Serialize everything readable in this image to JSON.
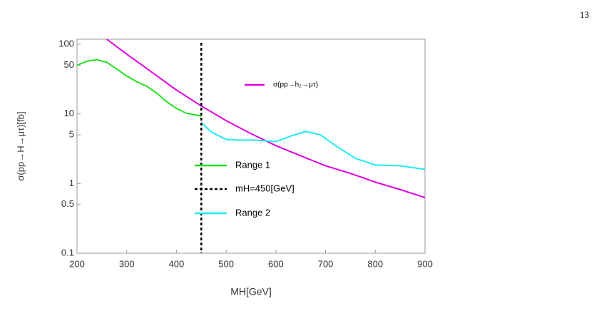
{
  "page_number": "13",
  "chart_data": {
    "type": "line",
    "xlabel": "MH[GeV]",
    "ylabel": "σ(pp→H→μτ)[fb]",
    "xlim": [
      200,
      900
    ],
    "xticks": [
      200,
      300,
      400,
      500,
      600,
      700,
      800,
      900
    ],
    "ylim": [
      0.1,
      118
    ],
    "yticks": [
      0.1,
      0.5,
      1,
      5,
      10,
      50,
      100
    ],
    "log_y": true,
    "series": [
      {
        "name": "σ(pp→h₂→μτ)",
        "color": "#e000e0",
        "x": [
          260,
          300,
          350,
          400,
          450,
          500,
          550,
          600,
          650,
          700,
          750,
          800,
          850,
          900
        ],
        "values": [
          118,
          72,
          40,
          22,
          13,
          8,
          5.2,
          3.5,
          2.5,
          1.8,
          1.4,
          1.05,
          0.82,
          0.63
        ]
      },
      {
        "name": "Range 1",
        "color": "#22e022",
        "x": [
          200,
          220,
          240,
          260,
          280,
          300,
          320,
          340,
          360,
          380,
          400,
          420,
          440,
          450
        ],
        "values": [
          50,
          57,
          60,
          55,
          44,
          35,
          29,
          25,
          20,
          15,
          12,
          10.2,
          9.6,
          9.3
        ]
      },
      {
        "name": "Range 2",
        "color": "#22e8f0",
        "x": [
          450,
          470,
          500,
          530,
          560,
          600,
          630,
          660,
          690,
          720,
          760,
          800,
          850,
          900
        ],
        "values": [
          7.5,
          5.5,
          4.3,
          4.2,
          4.2,
          4.0,
          4.8,
          5.6,
          5.0,
          3.5,
          2.3,
          1.85,
          1.8,
          1.6
        ]
      }
    ],
    "vline": {
      "name": "mH=450[GeV]",
      "x": 450,
      "color": "#000000"
    }
  }
}
